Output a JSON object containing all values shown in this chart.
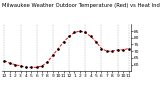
{
  "title": "Milwaukee Weather Outdoor Temperature (Red) vs Heat Index (Blue) (24 Hours)",
  "hours": [
    0,
    1,
    2,
    3,
    4,
    5,
    6,
    7,
    8,
    9,
    10,
    11,
    12,
    13,
    14,
    15,
    16,
    17,
    18,
    19,
    20,
    21,
    22,
    23
  ],
  "temperature": [
    63,
    61,
    60,
    59,
    58,
    58,
    58,
    59,
    62,
    67,
    72,
    77,
    81,
    84,
    85,
    84,
    81,
    77,
    72,
    70,
    70,
    71,
    71,
    72
  ],
  "ylim": [
    55,
    90
  ],
  "ytick_values": [
    60,
    65,
    70,
    75,
    80,
    85
  ],
  "ytick_labels": [
    "60",
    "65",
    "70",
    "75",
    "80",
    "85"
  ],
  "line_color_temp": "#ff0000",
  "bg_color": "#ffffff",
  "grid_color": "#888888",
  "dot_color": "#000000",
  "title_fontsize": 3.8,
  "tick_fontsize": 3.2,
  "xtick_labels": [
    "12",
    "1",
    "2",
    "3",
    "4",
    "5",
    "6",
    "7",
    "8",
    "9",
    "10",
    "11",
    "12",
    "1",
    "2",
    "3",
    "4",
    "5",
    "6",
    "7",
    "8",
    "9",
    "10",
    "11"
  ]
}
